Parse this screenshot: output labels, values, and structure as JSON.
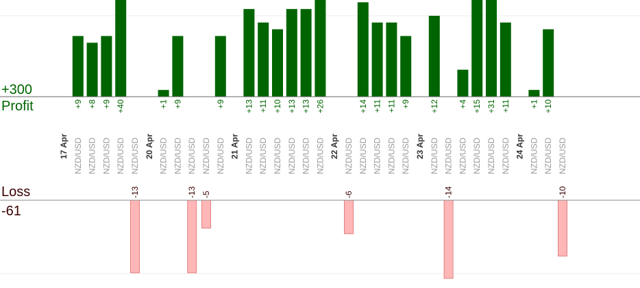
{
  "labels": {
    "profit_total": "+300",
    "profit_label": "Profit",
    "loss_label": "Loss",
    "loss_total": "-61"
  },
  "colors": {
    "profit_bar": "#006400",
    "loss_bar": "#ffb6b6",
    "loss_bar_edge": "#e08080",
    "profit_text": "#006400",
    "loss_text": "#3a0000",
    "date_text": "#333333",
    "pair_text": "#999999"
  },
  "chart_data": {
    "type": "bar",
    "profit_scale_max": 12,
    "loss_scale_max": 14,
    "items": [
      {
        "kind": "date",
        "label": "17 Apr"
      },
      {
        "kind": "trade",
        "pair": "NZD/USD",
        "value": 9
      },
      {
        "kind": "trade",
        "pair": "NZD/USD",
        "value": 8
      },
      {
        "kind": "trade",
        "pair": "NZD/USD",
        "value": 9
      },
      {
        "kind": "trade",
        "pair": "NZD/USD",
        "value": 40
      },
      {
        "kind": "trade",
        "pair": "NZD/USD",
        "value": -13
      },
      {
        "kind": "date",
        "label": "20 Apr"
      },
      {
        "kind": "trade",
        "pair": "NZD/USD",
        "value": 1
      },
      {
        "kind": "trade",
        "pair": "NZD/USD",
        "value": 9
      },
      {
        "kind": "trade",
        "pair": "NZD/USD",
        "value": -13
      },
      {
        "kind": "trade",
        "pair": "NZD/USD",
        "value": -5
      },
      {
        "kind": "trade",
        "pair": "NZD/USD",
        "value": 9
      },
      {
        "kind": "date",
        "label": "21 Apr"
      },
      {
        "kind": "trade",
        "pair": "NZD/USD",
        "value": 13
      },
      {
        "kind": "trade",
        "pair": "NZD/USD",
        "value": 11
      },
      {
        "kind": "trade",
        "pair": "NZD/USD",
        "value": 10
      },
      {
        "kind": "trade",
        "pair": "NZD/USD",
        "value": 13
      },
      {
        "kind": "trade",
        "pair": "NZD/USD",
        "value": 13
      },
      {
        "kind": "trade",
        "pair": "NZD/USD",
        "value": 26
      },
      {
        "kind": "date",
        "label": "22 Apr"
      },
      {
        "kind": "trade",
        "pair": "NZD/USD",
        "value": -6
      },
      {
        "kind": "trade",
        "pair": "NZD/USD",
        "value": 14
      },
      {
        "kind": "trade",
        "pair": "NZD/USD",
        "value": 11
      },
      {
        "kind": "trade",
        "pair": "NZD/USD",
        "value": 11
      },
      {
        "kind": "trade",
        "pair": "NZD/USD",
        "value": 9
      },
      {
        "kind": "date",
        "label": "23 Apr"
      },
      {
        "kind": "trade",
        "pair": "NZD/USD",
        "value": 12
      },
      {
        "kind": "trade",
        "pair": "NZD/USD",
        "value": -14
      },
      {
        "kind": "trade",
        "pair": "NZD/USD",
        "value": 4
      },
      {
        "kind": "trade",
        "pair": "NZD/USD",
        "value": 15
      },
      {
        "kind": "trade",
        "pair": "NZD/USD",
        "value": 31
      },
      {
        "kind": "trade",
        "pair": "NZD/USD",
        "value": 11
      },
      {
        "kind": "date",
        "label": "24 Apr"
      },
      {
        "kind": "trade",
        "pair": "NZD/USD",
        "value": 1
      },
      {
        "kind": "trade",
        "pair": "NZD/USD",
        "value": 10
      },
      {
        "kind": "trade",
        "pair": "NZD/USD",
        "value": -10
      }
    ]
  }
}
